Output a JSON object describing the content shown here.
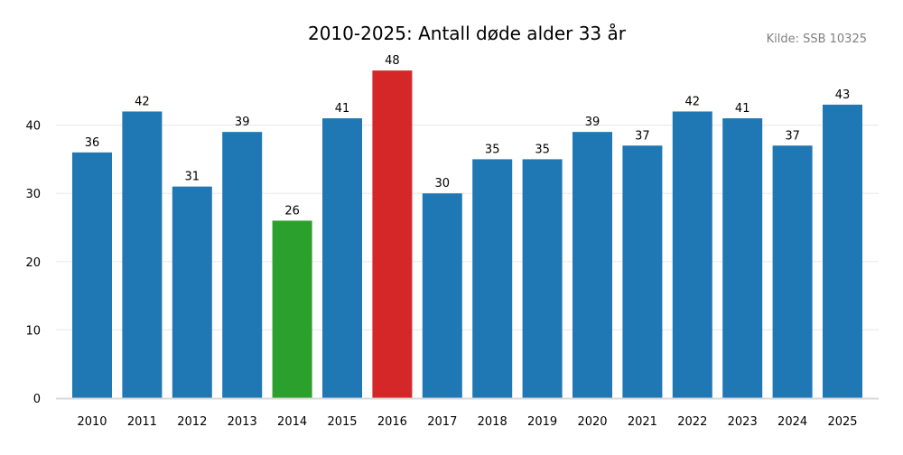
{
  "chart_data": {
    "type": "bar",
    "title": "2010-2025: Antall døde alder 33 år",
    "source": "Kilde: SSB 10325",
    "xlabel": "",
    "ylabel": "",
    "categories": [
      "2010",
      "2011",
      "2012",
      "2013",
      "2014",
      "2015",
      "2016",
      "2017",
      "2018",
      "2019",
      "2020",
      "2021",
      "2022",
      "2023",
      "2024",
      "2025"
    ],
    "values": [
      36,
      42,
      31,
      39,
      26,
      41,
      48,
      30,
      35,
      35,
      39,
      37,
      42,
      41,
      37,
      43
    ],
    "ylim": [
      0,
      50
    ],
    "yticks": [
      0,
      10,
      20,
      30,
      40
    ],
    "grid": true,
    "colors": {
      "default": "#1f77b4",
      "min": "#2ca02c",
      "max": "#d62728"
    },
    "highlight": {
      "2014": "min",
      "2016": "max"
    }
  }
}
